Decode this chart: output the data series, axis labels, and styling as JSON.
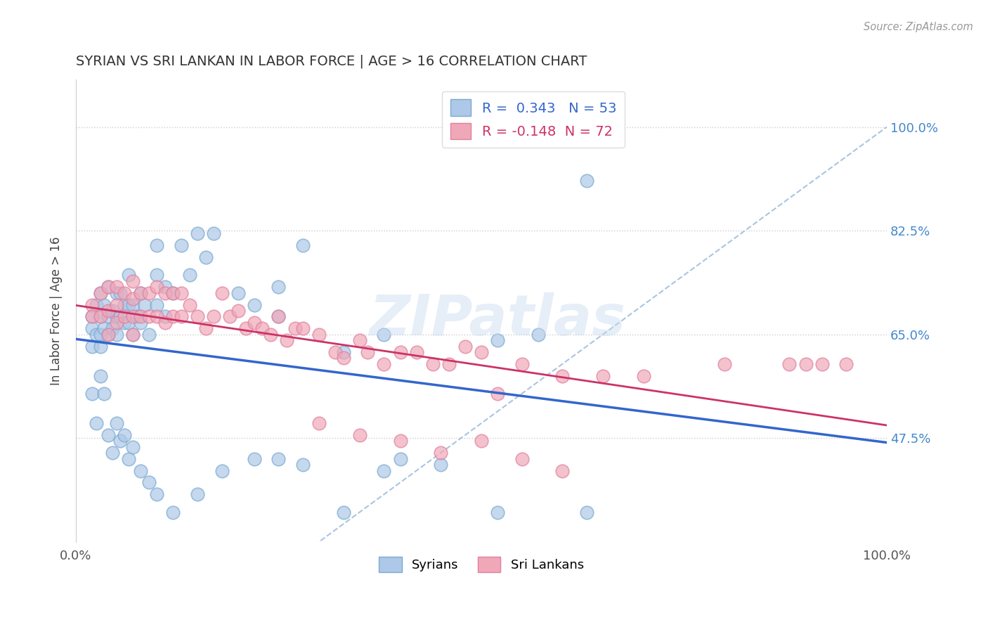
{
  "title": "SYRIAN VS SRI LANKAN IN LABOR FORCE | AGE > 16 CORRELATION CHART",
  "source_text": "Source: ZipAtlas.com",
  "ylabel": "In Labor Force | Age > 16",
  "xlim": [
    0.0,
    1.0
  ],
  "ylim": [
    0.3,
    1.08
  ],
  "x_ticks": [
    0.0,
    1.0
  ],
  "x_tick_labels": [
    "0.0%",
    "100.0%"
  ],
  "y_ticks": [
    0.475,
    0.65,
    0.825,
    1.0
  ],
  "y_tick_labels": [
    "47.5%",
    "65.0%",
    "82.5%",
    "100.0%"
  ],
  "background_color": "#ffffff",
  "syrian_color": "#adc8e8",
  "srilanka_color": "#f0a8b8",
  "syrian_edge_color": "#7aaad0",
  "srilanka_edge_color": "#e080a0",
  "regression_syrian_color": "#3366cc",
  "regression_srilanka_color": "#cc3366",
  "diag_line_color": "#99bbdd",
  "grid_color": "#cccccc",
  "R_syrian": 0.343,
  "N_syrian": 53,
  "R_srilanka": -0.148,
  "N_srilanka": 72,
  "legend_syrian_label": "Syrians",
  "legend_srilanka_label": "Sri Lankans",
  "watermark_text": "ZIPatlas",
  "syrian_x": [
    0.02,
    0.02,
    0.02,
    0.025,
    0.025,
    0.03,
    0.03,
    0.03,
    0.03,
    0.035,
    0.035,
    0.04,
    0.04,
    0.04,
    0.045,
    0.045,
    0.05,
    0.05,
    0.05,
    0.055,
    0.055,
    0.06,
    0.06,
    0.065,
    0.065,
    0.065,
    0.07,
    0.07,
    0.075,
    0.08,
    0.08,
    0.085,
    0.09,
    0.1,
    0.1,
    0.1,
    0.11,
    0.11,
    0.12,
    0.13,
    0.14,
    0.15,
    0.16,
    0.17,
    0.2,
    0.22,
    0.25,
    0.25,
    0.28,
    0.33,
    0.38,
    0.52,
    0.63
  ],
  "syrian_y": [
    0.68,
    0.66,
    0.63,
    0.7,
    0.65,
    0.72,
    0.68,
    0.65,
    0.63,
    0.7,
    0.66,
    0.73,
    0.68,
    0.65,
    0.69,
    0.66,
    0.72,
    0.68,
    0.65,
    0.72,
    0.68,
    0.7,
    0.67,
    0.75,
    0.7,
    0.67,
    0.7,
    0.65,
    0.68,
    0.72,
    0.67,
    0.7,
    0.65,
    0.8,
    0.75,
    0.7,
    0.73,
    0.68,
    0.72,
    0.8,
    0.75,
    0.82,
    0.78,
    0.82,
    0.72,
    0.7,
    0.73,
    0.68,
    0.8,
    0.62,
    0.65,
    0.64,
    0.91
  ],
  "syrian_x2": [
    0.02,
    0.025,
    0.03,
    0.035,
    0.04,
    0.045,
    0.05,
    0.055,
    0.06,
    0.065,
    0.07,
    0.08,
    0.09,
    0.1,
    0.12,
    0.15,
    0.18,
    0.22,
    0.25,
    0.28,
    0.33,
    0.38,
    0.4,
    0.45,
    0.52,
    0.57,
    0.63
  ],
  "syrian_y2": [
    0.55,
    0.5,
    0.58,
    0.55,
    0.48,
    0.45,
    0.5,
    0.47,
    0.48,
    0.44,
    0.46,
    0.42,
    0.4,
    0.38,
    0.35,
    0.38,
    0.42,
    0.44,
    0.44,
    0.43,
    0.35,
    0.42,
    0.44,
    0.43,
    0.35,
    0.65,
    0.35
  ],
  "srilanka_x": [
    0.02,
    0.02,
    0.03,
    0.03,
    0.04,
    0.04,
    0.04,
    0.05,
    0.05,
    0.05,
    0.06,
    0.06,
    0.07,
    0.07,
    0.07,
    0.07,
    0.08,
    0.08,
    0.09,
    0.09,
    0.1,
    0.1,
    0.11,
    0.11,
    0.12,
    0.12,
    0.13,
    0.13,
    0.14,
    0.15,
    0.16,
    0.17,
    0.18,
    0.19,
    0.2,
    0.21,
    0.22,
    0.23,
    0.24,
    0.25,
    0.26,
    0.27,
    0.28,
    0.3,
    0.32,
    0.33,
    0.35,
    0.36,
    0.38,
    0.4,
    0.42,
    0.44,
    0.46,
    0.48,
    0.5,
    0.52,
    0.55,
    0.6,
    0.65,
    0.7,
    0.8,
    0.88,
    0.9,
    0.92,
    0.95,
    0.3,
    0.35,
    0.4,
    0.45,
    0.5,
    0.55,
    0.6
  ],
  "srilanka_y": [
    0.7,
    0.68,
    0.72,
    0.68,
    0.73,
    0.69,
    0.65,
    0.73,
    0.7,
    0.67,
    0.72,
    0.68,
    0.74,
    0.71,
    0.68,
    0.65,
    0.72,
    0.68,
    0.72,
    0.68,
    0.73,
    0.68,
    0.72,
    0.67,
    0.72,
    0.68,
    0.72,
    0.68,
    0.7,
    0.68,
    0.66,
    0.68,
    0.72,
    0.68,
    0.69,
    0.66,
    0.67,
    0.66,
    0.65,
    0.68,
    0.64,
    0.66,
    0.66,
    0.65,
    0.62,
    0.61,
    0.64,
    0.62,
    0.6,
    0.62,
    0.62,
    0.6,
    0.6,
    0.63,
    0.62,
    0.55,
    0.6,
    0.58,
    0.58,
    0.58,
    0.6,
    0.6,
    0.6,
    0.6,
    0.6,
    0.5,
    0.48,
    0.47,
    0.45,
    0.47,
    0.44,
    0.42
  ]
}
